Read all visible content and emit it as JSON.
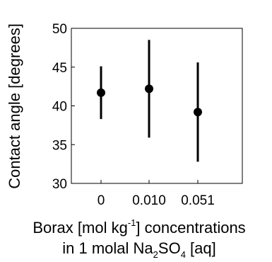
{
  "chart_data": {
    "type": "scatter",
    "title": "",
    "ylabel": "Contact angle [degrees]",
    "xlabel_line1_parts": [
      "Borax [mol kg",
      "-1",
      "] concentrations"
    ],
    "xlabel_line2_parts": [
      "in 1 molal Na",
      "2",
      "SO",
      "4",
      " [aq]"
    ],
    "categories": [
      "0",
      "0.010",
      "0.051"
    ],
    "values": [
      41.7,
      42.2,
      39.2
    ],
    "error_low": [
      38.3,
      35.9,
      32.8
    ],
    "error_high": [
      45.1,
      48.5,
      45.6
    ],
    "ylim": [
      30,
      50
    ],
    "yticks": [
      "30",
      "35",
      "40",
      "45",
      "50"
    ],
    "grid": false,
    "legend": "none",
    "colors": {
      "marker": "#000000",
      "axis": "#000000"
    }
  }
}
